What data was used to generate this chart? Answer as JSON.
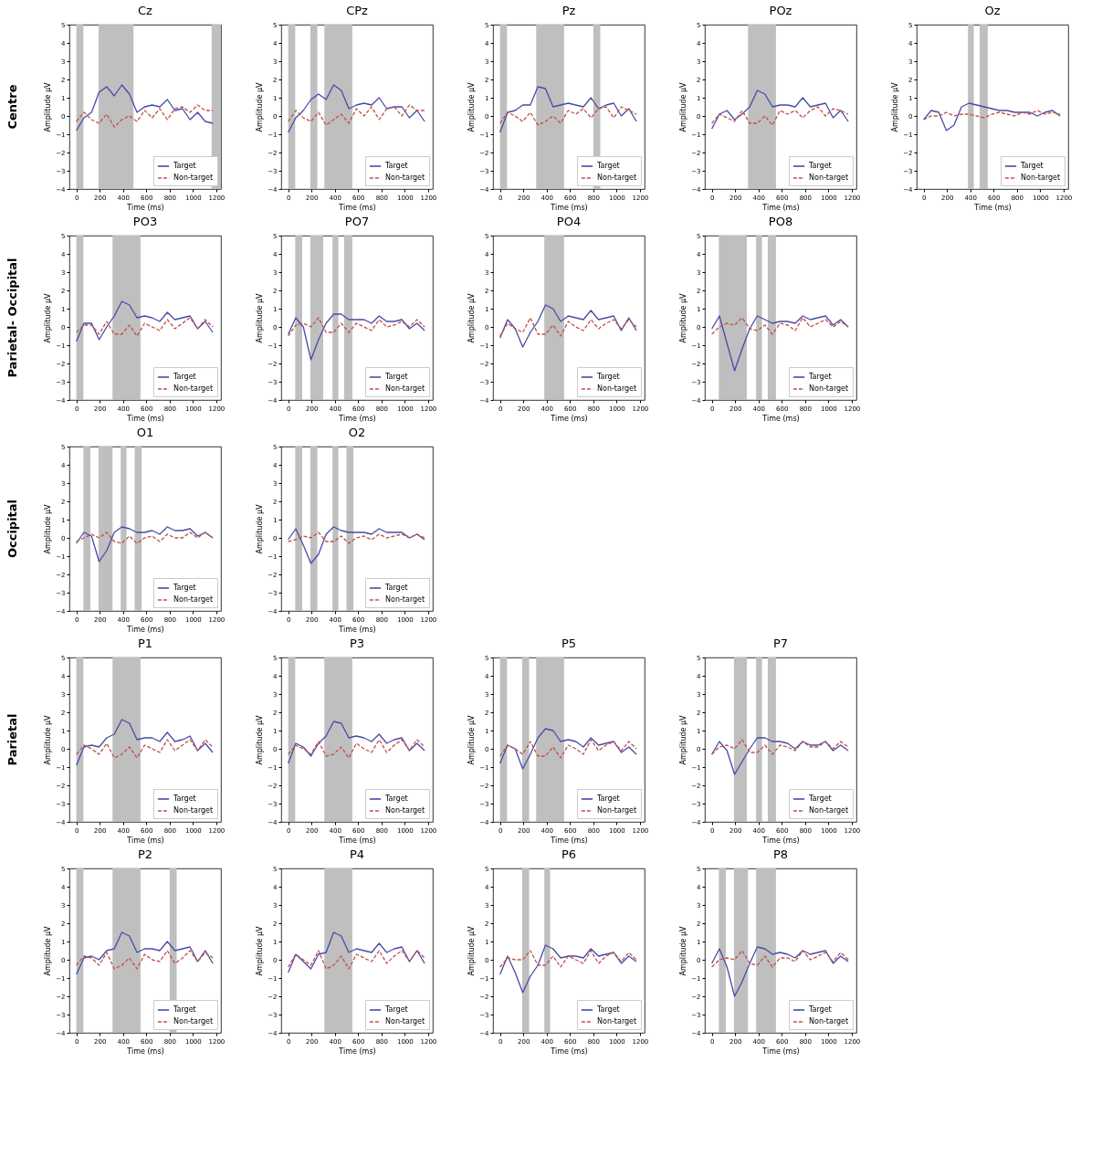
{
  "chart_data": [
    {
      "type": "line",
      "title": "Cz",
      "xlabel": "Time (ms)",
      "ylabel": "Amplitude μV",
      "annotations": [
        "Centre"
      ],
      "xlim": [
        -60,
        1240
      ],
      "xticks": [
        0,
        200,
        400,
        600,
        800,
        1000,
        1200
      ],
      "ylim": [
        -4,
        5
      ],
      "yticks": [
        -4,
        -3,
        -2,
        -1,
        0,
        1,
        2,
        3,
        4,
        5
      ],
      "legend": "bottom right",
      "x": [
        0,
        65,
        130,
        195,
        260,
        325,
        390,
        455,
        520,
        585,
        650,
        715,
        780,
        845,
        910,
        975,
        1040,
        1105,
        1170
      ],
      "bands": [
        {
          "axis": "x",
          "from": 0,
          "to": 60,
          "color": "#bfbfbf"
        },
        {
          "axis": "x",
          "from": 190,
          "to": 490,
          "color": "#bfbfbf"
        },
        {
          "axis": "x",
          "from": 1160,
          "to": 1240,
          "color": "#bfbfbf"
        }
      ],
      "series": [
        {
          "name": "Target",
          "color": "#4a4aa8",
          "line_style": "solid",
          "values": [
            -0.8,
            -0.1,
            0.2,
            1.3,
            1.6,
            1.1,
            1.7,
            1.2,
            0.2,
            0.5,
            0.6,
            0.5,
            0.9,
            0.3,
            0.4,
            -0.2,
            0.2,
            -0.3,
            -0.4
          ]
        },
        {
          "name": "Non-target",
          "color": "#c0504d",
          "line_style": "dashed",
          "values": [
            -0.3,
            0.2,
            -0.2,
            -0.4,
            0.1,
            -0.6,
            -0.2,
            0.0,
            -0.3,
            0.3,
            -0.1,
            0.4,
            -0.2,
            0.4,
            0.5,
            0.2,
            0.6,
            0.3,
            0.3
          ]
        }
      ]
    },
    {
      "type": "line",
      "title": "CPz",
      "xlabel": "Time (ms)",
      "ylabel": "Amplitude μV",
      "xlim": [
        -60,
        1240
      ],
      "xticks": [
        0,
        200,
        400,
        600,
        800,
        1000,
        1200
      ],
      "ylim": [
        -4,
        5
      ],
      "yticks": [
        -4,
        -3,
        -2,
        -1,
        0,
        1,
        2,
        3,
        4,
        5
      ],
      "legend": "bottom right",
      "x": [
        0,
        65,
        130,
        195,
        260,
        325,
        390,
        455,
        520,
        585,
        650,
        715,
        780,
        845,
        910,
        975,
        1040,
        1105,
        1170
      ],
      "bands": [
        {
          "axis": "x",
          "from": 0,
          "to": 60,
          "color": "#bfbfbf"
        },
        {
          "axis": "x",
          "from": 190,
          "to": 250,
          "color": "#bfbfbf"
        },
        {
          "axis": "x",
          "from": 310,
          "to": 550,
          "color": "#bfbfbf"
        }
      ],
      "series": [
        {
          "name": "Target",
          "color": "#4a4aa8",
          "line_style": "solid",
          "values": [
            -0.9,
            -0.1,
            0.3,
            0.9,
            1.2,
            0.9,
            1.7,
            1.4,
            0.4,
            0.6,
            0.7,
            0.6,
            1.0,
            0.4,
            0.5,
            0.5,
            -0.1,
            0.3,
            -0.3
          ]
        },
        {
          "name": "Non-target",
          "color": "#c0504d",
          "line_style": "dashed",
          "values": [
            -0.3,
            0.3,
            -0.1,
            -0.3,
            0.2,
            -0.5,
            -0.2,
            0.1,
            -0.4,
            0.4,
            0.0,
            0.5,
            -0.2,
            0.4,
            0.5,
            0.0,
            0.6,
            0.3,
            0.3
          ]
        }
      ]
    },
    {
      "type": "line",
      "title": "Pz",
      "xlabel": "Time (ms)",
      "ylabel": "Amplitude μV",
      "xlim": [
        -60,
        1240
      ],
      "xticks": [
        0,
        200,
        400,
        600,
        800,
        1000,
        1200
      ],
      "ylim": [
        -4,
        5
      ],
      "yticks": [
        -4,
        -3,
        -2,
        -1,
        0,
        1,
        2,
        3,
        4,
        5
      ],
      "legend": "bottom right",
      "x": [
        0,
        65,
        130,
        195,
        260,
        325,
        390,
        455,
        520,
        585,
        650,
        715,
        780,
        845,
        910,
        975,
        1040,
        1105,
        1170
      ],
      "bands": [
        {
          "axis": "x",
          "from": 0,
          "to": 60,
          "color": "#bfbfbf"
        },
        {
          "axis": "x",
          "from": 310,
          "to": 550,
          "color": "#bfbfbf"
        },
        {
          "axis": "x",
          "from": 800,
          "to": 860,
          "color": "#bfbfbf"
        }
      ],
      "series": [
        {
          "name": "Target",
          "color": "#4a4aa8",
          "line_style": "solid",
          "values": [
            -0.9,
            0.2,
            0.3,
            0.6,
            0.6,
            1.6,
            1.5,
            0.5,
            0.6,
            0.7,
            0.6,
            0.5,
            1.0,
            0.4,
            0.6,
            0.7,
            0.0,
            0.4,
            -0.3
          ]
        },
        {
          "name": "Non-target",
          "color": "#c0504d",
          "line_style": "dashed",
          "values": [
            -0.4,
            0.2,
            0.0,
            -0.3,
            0.2,
            -0.5,
            -0.3,
            0.0,
            -0.4,
            0.3,
            0.1,
            0.4,
            -0.1,
            0.4,
            0.5,
            -0.1,
            0.5,
            0.3,
            0.1
          ]
        }
      ]
    },
    {
      "type": "line",
      "title": "POz",
      "xlabel": "Time (ms)",
      "ylabel": "Amplitude μV",
      "xlim": [
        -60,
        1240
      ],
      "xticks": [
        0,
        200,
        400,
        600,
        800,
        1000,
        1200
      ],
      "ylim": [
        -4,
        5
      ],
      "yticks": [
        -4,
        -3,
        -2,
        -1,
        0,
        1,
        2,
        3,
        4,
        5
      ],
      "legend": "bottom right",
      "x": [
        0,
        65,
        130,
        195,
        260,
        325,
        390,
        455,
        520,
        585,
        650,
        715,
        780,
        845,
        910,
        975,
        1040,
        1105,
        1170
      ],
      "bands": [
        {
          "axis": "x",
          "from": 310,
          "to": 550,
          "color": "#bfbfbf"
        }
      ],
      "series": [
        {
          "name": "Target",
          "color": "#4a4aa8",
          "line_style": "solid",
          "values": [
            -0.7,
            0.1,
            0.3,
            -0.2,
            0.1,
            0.5,
            1.4,
            1.2,
            0.5,
            0.6,
            0.6,
            0.5,
            1.0,
            0.5,
            0.6,
            0.7,
            -0.1,
            0.3,
            -0.3
          ]
        },
        {
          "name": "Non-target",
          "color": "#c0504d",
          "line_style": "dashed",
          "values": [
            -0.4,
            0.1,
            -0.1,
            -0.3,
            0.3,
            -0.4,
            -0.4,
            0.0,
            -0.5,
            0.3,
            0.1,
            0.3,
            -0.1,
            0.3,
            0.5,
            0.0,
            0.4,
            0.3,
            0.1
          ]
        }
      ]
    },
    {
      "type": "line",
      "title": "Oz",
      "xlabel": "Time (ms)",
      "ylabel": "Amplitude μV",
      "xlim": [
        -60,
        1240
      ],
      "xticks": [
        0,
        200,
        400,
        600,
        800,
        1000,
        1200
      ],
      "ylim": [
        -4,
        5
      ],
      "yticks": [
        -4,
        -3,
        -2,
        -1,
        0,
        1,
        2,
        3,
        4,
        5
      ],
      "legend": "bottom right",
      "x": [
        0,
        65,
        130,
        195,
        260,
        325,
        390,
        455,
        520,
        585,
        650,
        715,
        780,
        845,
        910,
        975,
        1040,
        1105,
        1170
      ],
      "bands": [
        {
          "axis": "x",
          "from": 380,
          "to": 430,
          "color": "#bfbfbf"
        },
        {
          "axis": "x",
          "from": 480,
          "to": 550,
          "color": "#bfbfbf"
        }
      ],
      "series": [
        {
          "name": "Target",
          "color": "#4a4aa8",
          "line_style": "solid",
          "values": [
            -0.2,
            0.3,
            0.2,
            -0.8,
            -0.5,
            0.5,
            0.7,
            0.6,
            0.5,
            0.4,
            0.3,
            0.3,
            0.2,
            0.2,
            0.2,
            0.0,
            0.2,
            0.3,
            0.0
          ]
        },
        {
          "name": "Non-target",
          "color": "#c0504d",
          "line_style": "dashed",
          "values": [
            -0.2,
            0.0,
            0.0,
            0.2,
            0.0,
            0.1,
            0.1,
            0.0,
            -0.1,
            0.1,
            0.2,
            0.1,
            0.0,
            0.2,
            0.1,
            0.3,
            0.1,
            0.2,
            0.1
          ]
        }
      ]
    },
    {
      "type": "line",
      "title": "PO3",
      "xlabel": "Time (ms)",
      "ylabel": "Amplitude μV",
      "annotations": [
        "Parietal- Occipital"
      ],
      "xlim": [
        -60,
        1240
      ],
      "xticks": [
        0,
        200,
        400,
        600,
        800,
        1000,
        1200
      ],
      "ylim": [
        -4,
        5
      ],
      "yticks": [
        -4,
        -3,
        -2,
        -1,
        0,
        1,
        2,
        3,
        4,
        5
      ],
      "legend": "bottom right",
      "x": [
        0,
        65,
        130,
        195,
        260,
        325,
        390,
        455,
        520,
        585,
        650,
        715,
        780,
        845,
        910,
        975,
        1040,
        1105,
        1170
      ],
      "bands": [
        {
          "axis": "x",
          "from": 0,
          "to": 60,
          "color": "#bfbfbf"
        },
        {
          "axis": "x",
          "from": 310,
          "to": 550,
          "color": "#bfbfbf"
        }
      ],
      "series": [
        {
          "name": "Target",
          "color": "#4a4aa8",
          "line_style": "solid",
          "values": [
            -0.8,
            0.2,
            0.2,
            -0.7,
            0.0,
            0.6,
            1.4,
            1.2,
            0.5,
            0.6,
            0.5,
            0.3,
            0.8,
            0.4,
            0.5,
            0.6,
            -0.1,
            0.3,
            -0.3
          ]
        },
        {
          "name": "Non-target",
          "color": "#c0504d",
          "line_style": "dashed",
          "values": [
            -0.3,
            0.1,
            0.1,
            -0.4,
            0.3,
            -0.4,
            -0.4,
            0.1,
            -0.5,
            0.2,
            0.0,
            -0.2,
            0.4,
            -0.1,
            0.2,
            0.5,
            -0.1,
            0.4,
            0.0
          ]
        }
      ]
    },
    {
      "type": "line",
      "title": "PO7",
      "xlabel": "Time (ms)",
      "ylabel": "Amplitude μV",
      "xlim": [
        -60,
        1240
      ],
      "xticks": [
        0,
        200,
        400,
        600,
        800,
        1000,
        1200
      ],
      "ylim": [
        -4,
        5
      ],
      "yticks": [
        -4,
        -3,
        -2,
        -1,
        0,
        1,
        2,
        3,
        4,
        5
      ],
      "legend": "bottom right",
      "x": [
        0,
        65,
        130,
        195,
        260,
        325,
        390,
        455,
        520,
        585,
        650,
        715,
        780,
        845,
        910,
        975,
        1040,
        1105,
        1170
      ],
      "bands": [
        {
          "axis": "x",
          "from": 60,
          "to": 120,
          "color": "#bfbfbf"
        },
        {
          "axis": "x",
          "from": 190,
          "to": 300,
          "color": "#bfbfbf"
        },
        {
          "axis": "x",
          "from": 380,
          "to": 430,
          "color": "#bfbfbf"
        },
        {
          "axis": "x",
          "from": 480,
          "to": 550,
          "color": "#bfbfbf"
        }
      ],
      "series": [
        {
          "name": "Target",
          "color": "#4a4aa8",
          "line_style": "solid",
          "values": [
            -0.4,
            0.5,
            0.0,
            -1.8,
            -0.7,
            0.2,
            0.7,
            0.7,
            0.4,
            0.4,
            0.4,
            0.2,
            0.6,
            0.3,
            0.3,
            0.4,
            -0.1,
            0.2,
            -0.2
          ]
        },
        {
          "name": "Non-target",
          "color": "#c0504d",
          "line_style": "dashed",
          "values": [
            -0.5,
            0.1,
            0.2,
            0.0,
            0.5,
            -0.3,
            -0.3,
            0.2,
            -0.3,
            0.2,
            0.0,
            -0.2,
            0.4,
            0.0,
            0.1,
            0.3,
            0.0,
            0.4,
            0.0
          ]
        }
      ]
    },
    {
      "type": "line",
      "title": "PO4",
      "xlabel": "Time (ms)",
      "ylabel": "Amplitude μV",
      "xlim": [
        -60,
        1240
      ],
      "xticks": [
        0,
        200,
        400,
        600,
        800,
        1000,
        1200
      ],
      "ylim": [
        -4,
        5
      ],
      "yticks": [
        -4,
        -3,
        -2,
        -1,
        0,
        1,
        2,
        3,
        4,
        5
      ],
      "legend": "bottom right",
      "x": [
        0,
        65,
        130,
        195,
        260,
        325,
        390,
        455,
        520,
        585,
        650,
        715,
        780,
        845,
        910,
        975,
        1040,
        1105,
        1170
      ],
      "bands": [
        {
          "axis": "x",
          "from": 380,
          "to": 550,
          "color": "#bfbfbf"
        }
      ],
      "series": [
        {
          "name": "Target",
          "color": "#4a4aa8",
          "line_style": "solid",
          "values": [
            -0.6,
            0.4,
            -0.1,
            -1.1,
            -0.3,
            0.3,
            1.2,
            1.0,
            0.3,
            0.6,
            0.5,
            0.4,
            0.9,
            0.4,
            0.5,
            0.6,
            -0.2,
            0.5,
            -0.2
          ]
        },
        {
          "name": "Non-target",
          "color": "#c0504d",
          "line_style": "dashed",
          "values": [
            -0.5,
            0.2,
            -0.1,
            -0.3,
            0.5,
            -0.4,
            -0.4,
            0.1,
            -0.5,
            0.3,
            0.0,
            -0.2,
            0.4,
            -0.1,
            0.2,
            0.4,
            -0.1,
            0.4,
            0.0
          ]
        }
      ]
    },
    {
      "type": "line",
      "title": "PO8",
      "xlabel": "Time (ms)",
      "ylabel": "Amplitude μV",
      "xlim": [
        -60,
        1240
      ],
      "xticks": [
        0,
        200,
        400,
        600,
        800,
        1000,
        1200
      ],
      "ylim": [
        -4,
        5
      ],
      "yticks": [
        -4,
        -3,
        -2,
        -1,
        0,
        1,
        2,
        3,
        4,
        5
      ],
      "legend": "bottom right",
      "x": [
        0,
        65,
        130,
        195,
        260,
        325,
        390,
        455,
        520,
        585,
        650,
        715,
        780,
        845,
        910,
        975,
        1040,
        1105,
        1170
      ],
      "bands": [
        {
          "axis": "x",
          "from": 60,
          "to": 300,
          "color": "#bfbfbf"
        },
        {
          "axis": "x",
          "from": 380,
          "to": 430,
          "color": "#bfbfbf"
        },
        {
          "axis": "x",
          "from": 480,
          "to": 550,
          "color": "#bfbfbf"
        }
      ],
      "series": [
        {
          "name": "Target",
          "color": "#4a4aa8",
          "line_style": "solid",
          "values": [
            -0.1,
            0.6,
            -0.9,
            -2.4,
            -1.2,
            -0.1,
            0.6,
            0.4,
            0.2,
            0.3,
            0.3,
            0.2,
            0.6,
            0.4,
            0.5,
            0.6,
            0.1,
            0.4,
            0.0
          ]
        },
        {
          "name": "Non-target",
          "color": "#c0504d",
          "line_style": "dashed",
          "values": [
            -0.4,
            0.0,
            0.2,
            0.1,
            0.5,
            -0.1,
            -0.2,
            0.1,
            -0.4,
            0.2,
            0.1,
            -0.2,
            0.5,
            0.0,
            0.2,
            0.4,
            0.0,
            0.3,
            0.0
          ]
        }
      ]
    },
    {
      "type": "line",
      "title": "O1",
      "xlabel": "Time (ms)",
      "ylabel": "Amplitude μV",
      "annotations": [
        "Occipital"
      ],
      "xlim": [
        -60,
        1240
      ],
      "xticks": [
        0,
        200,
        400,
        600,
        800,
        1000,
        1200
      ],
      "ylim": [
        -4,
        5
      ],
      "yticks": [
        -4,
        -3,
        -2,
        -1,
        0,
        1,
        2,
        3,
        4,
        5
      ],
      "legend": "bottom right",
      "x": [
        0,
        65,
        130,
        195,
        260,
        325,
        390,
        455,
        520,
        585,
        650,
        715,
        780,
        845,
        910,
        975,
        1040,
        1105,
        1170
      ],
      "bands": [
        {
          "axis": "x",
          "from": 60,
          "to": 120,
          "color": "#bfbfbf"
        },
        {
          "axis": "x",
          "from": 190,
          "to": 310,
          "color": "#bfbfbf"
        },
        {
          "axis": "x",
          "from": 380,
          "to": 430,
          "color": "#bfbfbf"
        },
        {
          "axis": "x",
          "from": 500,
          "to": 560,
          "color": "#bfbfbf"
        }
      ],
      "series": [
        {
          "name": "Target",
          "color": "#4a4aa8",
          "line_style": "solid",
          "values": [
            -0.3,
            0.3,
            0.1,
            -1.3,
            -0.7,
            0.3,
            0.6,
            0.5,
            0.3,
            0.3,
            0.4,
            0.2,
            0.6,
            0.4,
            0.4,
            0.5,
            0.1,
            0.3,
            0.0
          ]
        },
        {
          "name": "Non-target",
          "color": "#c0504d",
          "line_style": "dashed",
          "values": [
            -0.2,
            0.0,
            0.2,
            0.0,
            0.3,
            -0.2,
            -0.3,
            0.1,
            -0.3,
            0.0,
            0.1,
            -0.2,
            0.2,
            0.0,
            0.0,
            0.3,
            0.0,
            0.3,
            0.0
          ]
        }
      ]
    },
    {
      "type": "line",
      "title": "O2",
      "xlabel": "Time (ms)",
      "ylabel": "Amplitude μV",
      "xlim": [
        -60,
        1240
      ],
      "xticks": [
        0,
        200,
        400,
        600,
        800,
        1000,
        1200
      ],
      "ylim": [
        -4,
        5
      ],
      "yticks": [
        -4,
        -3,
        -2,
        -1,
        0,
        1,
        2,
        3,
        4,
        5
      ],
      "legend": "bottom right",
      "x": [
        0,
        65,
        130,
        195,
        260,
        325,
        390,
        455,
        520,
        585,
        650,
        715,
        780,
        845,
        910,
        975,
        1040,
        1105,
        1170
      ],
      "bands": [
        {
          "axis": "x",
          "from": 60,
          "to": 120,
          "color": "#bfbfbf"
        },
        {
          "axis": "x",
          "from": 190,
          "to": 250,
          "color": "#bfbfbf"
        },
        {
          "axis": "x",
          "from": 380,
          "to": 430,
          "color": "#bfbfbf"
        },
        {
          "axis": "x",
          "from": 500,
          "to": 560,
          "color": "#bfbfbf"
        }
      ],
      "series": [
        {
          "name": "Target",
          "color": "#4a4aa8",
          "line_style": "solid",
          "values": [
            -0.1,
            0.5,
            -0.4,
            -1.4,
            -0.9,
            0.2,
            0.6,
            0.4,
            0.3,
            0.3,
            0.3,
            0.2,
            0.5,
            0.3,
            0.3,
            0.3,
            0.0,
            0.2,
            -0.1
          ]
        },
        {
          "name": "Non-target",
          "color": "#c0504d",
          "line_style": "dashed",
          "values": [
            -0.2,
            -0.1,
            0.1,
            0.0,
            0.3,
            -0.2,
            -0.2,
            0.1,
            -0.3,
            0.0,
            0.1,
            -0.1,
            0.2,
            0.0,
            0.1,
            0.2,
            0.0,
            0.2,
            0.0
          ]
        }
      ]
    },
    {
      "type": "line",
      "title": "P1",
      "xlabel": "Time (ms)",
      "ylabel": "Amplitude μV",
      "annotations": [
        "Parietal"
      ],
      "xlim": [
        -60,
        1240
      ],
      "xticks": [
        0,
        200,
        400,
        600,
        800,
        1000,
        1200
      ],
      "ylim": [
        -4,
        5
      ],
      "yticks": [
        -4,
        -3,
        -2,
        -1,
        0,
        1,
        2,
        3,
        4,
        5
      ],
      "legend": "bottom right",
      "x": [
        0,
        65,
        130,
        195,
        260,
        325,
        390,
        455,
        520,
        585,
        650,
        715,
        780,
        845,
        910,
        975,
        1040,
        1105,
        1170
      ],
      "bands": [
        {
          "axis": "x",
          "from": 0,
          "to": 60,
          "color": "#bfbfbf"
        },
        {
          "axis": "x",
          "from": 310,
          "to": 550,
          "color": "#bfbfbf"
        }
      ],
      "series": [
        {
          "name": "Target",
          "color": "#4a4aa8",
          "line_style": "solid",
          "values": [
            -0.9,
            0.1,
            0.2,
            0.1,
            0.6,
            0.8,
            1.6,
            1.4,
            0.5,
            0.6,
            0.6,
            0.4,
            0.9,
            0.4,
            0.5,
            0.7,
            -0.1,
            0.3,
            -0.2
          ]
        },
        {
          "name": "Non-target",
          "color": "#c0504d",
          "line_style": "dashed",
          "values": [
            -0.3,
            0.2,
            0.0,
            -0.3,
            0.3,
            -0.5,
            -0.3,
            0.1,
            -0.5,
            0.2,
            0.0,
            -0.2,
            0.5,
            -0.1,
            0.2,
            0.5,
            -0.1,
            0.5,
            0.1
          ]
        }
      ]
    },
    {
      "type": "line",
      "title": "P3",
      "xlabel": "Time (ms)",
      "ylabel": "Amplitude μV",
      "xlim": [
        -60,
        1240
      ],
      "xticks": [
        0,
        200,
        400,
        600,
        800,
        1000,
        1200
      ],
      "ylim": [
        -4,
        5
      ],
      "yticks": [
        -4,
        -3,
        -2,
        -1,
        0,
        1,
        2,
        3,
        4,
        5
      ],
      "legend": "bottom right",
      "x": [
        0,
        65,
        130,
        195,
        260,
        325,
        390,
        455,
        520,
        585,
        650,
        715,
        780,
        845,
        910,
        975,
        1040,
        1105,
        1170
      ],
      "bands": [
        {
          "axis": "x",
          "from": 0,
          "to": 60,
          "color": "#bfbfbf"
        },
        {
          "axis": "x",
          "from": 310,
          "to": 550,
          "color": "#bfbfbf"
        }
      ],
      "series": [
        {
          "name": "Target",
          "color": "#4a4aa8",
          "line_style": "solid",
          "values": [
            -0.8,
            0.3,
            0.1,
            -0.4,
            0.3,
            0.7,
            1.5,
            1.4,
            0.6,
            0.7,
            0.6,
            0.4,
            0.8,
            0.3,
            0.5,
            0.6,
            -0.1,
            0.3,
            -0.1
          ]
        },
        {
          "name": "Non-target",
          "color": "#c0504d",
          "line_style": "dashed",
          "values": [
            -0.3,
            0.2,
            0.0,
            -0.3,
            0.4,
            -0.4,
            -0.3,
            0.1,
            -0.5,
            0.3,
            0.0,
            -0.2,
            0.5,
            -0.2,
            0.2,
            0.5,
            -0.1,
            0.5,
            0.1
          ]
        }
      ]
    },
    {
      "type": "line",
      "title": "P5",
      "xlabel": "Time (ms)",
      "ylabel": "Amplitude μV",
      "xlim": [
        -60,
        1240
      ],
      "xticks": [
        0,
        200,
        400,
        600,
        800,
        1000,
        1200
      ],
      "ylim": [
        -4,
        5
      ],
      "yticks": [
        -4,
        -3,
        -2,
        -1,
        0,
        1,
        2,
        3,
        4,
        5
      ],
      "legend": "bottom right",
      "x": [
        0,
        65,
        130,
        195,
        260,
        325,
        390,
        455,
        520,
        585,
        650,
        715,
        780,
        845,
        910,
        975,
        1040,
        1105,
        1170
      ],
      "bands": [
        {
          "axis": "x",
          "from": 0,
          "to": 60,
          "color": "#bfbfbf"
        },
        {
          "axis": "x",
          "from": 190,
          "to": 250,
          "color": "#bfbfbf"
        },
        {
          "axis": "x",
          "from": 310,
          "to": 550,
          "color": "#bfbfbf"
        }
      ],
      "series": [
        {
          "name": "Target",
          "color": "#4a4aa8",
          "line_style": "solid",
          "values": [
            -0.8,
            0.2,
            0.0,
            -1.1,
            -0.3,
            0.6,
            1.1,
            1.0,
            0.4,
            0.5,
            0.4,
            0.1,
            0.6,
            0.2,
            0.3,
            0.4,
            -0.2,
            0.1,
            -0.3
          ]
        },
        {
          "name": "Non-target",
          "color": "#c0504d",
          "line_style": "dashed",
          "values": [
            -0.4,
            0.2,
            0.0,
            -0.3,
            0.4,
            -0.4,
            -0.4,
            0.1,
            -0.5,
            0.2,
            0.0,
            -0.3,
            0.5,
            -0.1,
            0.2,
            0.4,
            -0.1,
            0.4,
            0.0
          ]
        }
      ]
    },
    {
      "type": "line",
      "title": "P7",
      "xlabel": "Time (ms)",
      "ylabel": "Amplitude μV",
      "xlim": [
        -60,
        1240
      ],
      "xticks": [
        0,
        200,
        400,
        600,
        800,
        1000,
        1200
      ],
      "ylim": [
        -4,
        5
      ],
      "yticks": [
        -4,
        -3,
        -2,
        -1,
        0,
        1,
        2,
        3,
        4,
        5
      ],
      "legend": "bottom right",
      "x": [
        0,
        65,
        130,
        195,
        260,
        325,
        390,
        455,
        520,
        585,
        650,
        715,
        780,
        845,
        910,
        975,
        1040,
        1105,
        1170
      ],
      "bands": [
        {
          "axis": "x",
          "from": 190,
          "to": 300,
          "color": "#bfbfbf"
        },
        {
          "axis": "x",
          "from": 380,
          "to": 430,
          "color": "#bfbfbf"
        },
        {
          "axis": "x",
          "from": 480,
          "to": 550,
          "color": "#bfbfbf"
        }
      ],
      "series": [
        {
          "name": "Target",
          "color": "#4a4aa8",
          "line_style": "solid",
          "values": [
            -0.3,
            0.4,
            -0.1,
            -1.4,
            -0.7,
            0.0,
            0.6,
            0.6,
            0.4,
            0.4,
            0.3,
            0.0,
            0.4,
            0.2,
            0.2,
            0.4,
            -0.1,
            0.2,
            -0.1
          ]
        },
        {
          "name": "Non-target",
          "color": "#c0504d",
          "line_style": "dashed",
          "values": [
            -0.3,
            0.1,
            0.2,
            0.0,
            0.5,
            -0.2,
            -0.2,
            0.2,
            -0.3,
            0.2,
            0.1,
            -0.1,
            0.4,
            0.1,
            0.1,
            0.4,
            0.0,
            0.4,
            0.1
          ]
        }
      ]
    },
    {
      "type": "line",
      "title": "P2",
      "xlabel": "Time (ms)",
      "ylabel": "Amplitude μV",
      "xlim": [
        -60,
        1240
      ],
      "xticks": [
        0,
        200,
        400,
        600,
        800,
        1000,
        1200
      ],
      "ylim": [
        -4,
        5
      ],
      "yticks": [
        -4,
        -3,
        -2,
        -1,
        0,
        1,
        2,
        3,
        4,
        5
      ],
      "legend": "bottom right",
      "x": [
        0,
        65,
        130,
        195,
        260,
        325,
        390,
        455,
        520,
        585,
        650,
        715,
        780,
        845,
        910,
        975,
        1040,
        1105,
        1170
      ],
      "bands": [
        {
          "axis": "x",
          "from": 0,
          "to": 60,
          "color": "#bfbfbf"
        },
        {
          "axis": "x",
          "from": 310,
          "to": 550,
          "color": "#bfbfbf"
        },
        {
          "axis": "x",
          "from": 800,
          "to": 860,
          "color": "#bfbfbf"
        }
      ],
      "series": [
        {
          "name": "Target",
          "color": "#4a4aa8",
          "line_style": "solid",
          "values": [
            -0.8,
            0.1,
            0.2,
            0.0,
            0.5,
            0.6,
            1.5,
            1.3,
            0.4,
            0.6,
            0.6,
            0.5,
            1.0,
            0.5,
            0.6,
            0.7,
            -0.1,
            0.5,
            -0.2
          ]
        },
        {
          "name": "Non-target",
          "color": "#c0504d",
          "line_style": "dashed",
          "values": [
            -0.3,
            0.2,
            0.1,
            -0.3,
            0.4,
            -0.5,
            -0.3,
            0.1,
            -0.5,
            0.3,
            0.0,
            -0.1,
            0.5,
            -0.2,
            0.1,
            0.5,
            -0.1,
            0.4,
            0.1
          ]
        }
      ]
    },
    {
      "type": "line",
      "title": "P4",
      "xlabel": "Time (ms)",
      "ylabel": "Amplitude μV",
      "xlim": [
        -60,
        1240
      ],
      "xticks": [
        0,
        200,
        400,
        600,
        800,
        1000,
        1200
      ],
      "ylim": [
        -4,
        5
      ],
      "yticks": [
        -4,
        -3,
        -2,
        -1,
        0,
        1,
        2,
        3,
        4,
        5
      ],
      "legend": "bottom right",
      "x": [
        0,
        65,
        130,
        195,
        260,
        325,
        390,
        455,
        520,
        585,
        650,
        715,
        780,
        845,
        910,
        975,
        1040,
        1105,
        1170
      ],
      "bands": [
        {
          "axis": "x",
          "from": 310,
          "to": 550,
          "color": "#bfbfbf"
        }
      ],
      "series": [
        {
          "name": "Target",
          "color": "#4a4aa8",
          "line_style": "solid",
          "values": [
            -0.7,
            0.3,
            -0.1,
            -0.5,
            0.3,
            0.4,
            1.5,
            1.3,
            0.4,
            0.6,
            0.5,
            0.4,
            0.9,
            0.4,
            0.6,
            0.7,
            -0.1,
            0.5,
            -0.2
          ]
        },
        {
          "name": "Non-target",
          "color": "#c0504d",
          "line_style": "dashed",
          "values": [
            -0.4,
            0.3,
            0.0,
            -0.3,
            0.5,
            -0.5,
            -0.3,
            0.2,
            -0.5,
            0.3,
            0.1,
            -0.1,
            0.5,
            -0.2,
            0.2,
            0.5,
            -0.1,
            0.5,
            0.1
          ]
        }
      ]
    },
    {
      "type": "line",
      "title": "P6",
      "xlabel": "Time (ms)",
      "ylabel": "Amplitude μV",
      "xlim": [
        -60,
        1240
      ],
      "xticks": [
        0,
        200,
        400,
        600,
        800,
        1000,
        1200
      ],
      "ylim": [
        -4,
        5
      ],
      "yticks": [
        -4,
        -3,
        -2,
        -1,
        0,
        1,
        2,
        3,
        4,
        5
      ],
      "legend": "bottom right",
      "x": [
        0,
        65,
        130,
        195,
        260,
        325,
        390,
        455,
        520,
        585,
        650,
        715,
        780,
        845,
        910,
        975,
        1040,
        1105,
        1170
      ],
      "bands": [
        {
          "axis": "x",
          "from": 190,
          "to": 250,
          "color": "#bfbfbf"
        },
        {
          "axis": "x",
          "from": 380,
          "to": 430,
          "color": "#bfbfbf"
        }
      ],
      "series": [
        {
          "name": "Target",
          "color": "#4a4aa8",
          "line_style": "solid",
          "values": [
            -0.8,
            0.2,
            -0.7,
            -1.8,
            -0.9,
            -0.3,
            0.8,
            0.6,
            0.1,
            0.2,
            0.2,
            0.1,
            0.6,
            0.2,
            0.3,
            0.4,
            -0.2,
            0.2,
            -0.1
          ]
        },
        {
          "name": "Non-target",
          "color": "#c0504d",
          "line_style": "dashed",
          "values": [
            -0.4,
            0.1,
            0.0,
            0.0,
            0.5,
            -0.3,
            -0.3,
            0.2,
            -0.4,
            0.2,
            0.0,
            -0.2,
            0.5,
            -0.2,
            0.2,
            0.4,
            -0.1,
            0.4,
            0.0
          ]
        }
      ]
    },
    {
      "type": "line",
      "title": "P8",
      "xlabel": "Time (ms)",
      "ylabel": "Amplitude μV",
      "xlim": [
        -60,
        1240
      ],
      "xticks": [
        0,
        200,
        400,
        600,
        800,
        1000,
        1200
      ],
      "ylim": [
        -4,
        5
      ],
      "yticks": [
        -4,
        -3,
        -2,
        -1,
        0,
        1,
        2,
        3,
        4,
        5
      ],
      "legend": "bottom right",
      "x": [
        0,
        65,
        130,
        195,
        260,
        325,
        390,
        455,
        520,
        585,
        650,
        715,
        780,
        845,
        910,
        975,
        1040,
        1105,
        1170
      ],
      "bands": [
        {
          "axis": "x",
          "from": 60,
          "to": 120,
          "color": "#bfbfbf"
        },
        {
          "axis": "x",
          "from": 190,
          "to": 310,
          "color": "#bfbfbf"
        },
        {
          "axis": "x",
          "from": 380,
          "to": 550,
          "color": "#bfbfbf"
        }
      ],
      "series": [
        {
          "name": "Target",
          "color": "#4a4aa8",
          "line_style": "solid",
          "values": [
            -0.2,
            0.6,
            -0.4,
            -2.0,
            -1.2,
            -0.2,
            0.7,
            0.6,
            0.3,
            0.4,
            0.3,
            0.1,
            0.5,
            0.3,
            0.4,
            0.5,
            -0.2,
            0.2,
            -0.1
          ]
        },
        {
          "name": "Non-target",
          "color": "#c0504d",
          "line_style": "dashed",
          "values": [
            -0.4,
            0.0,
            0.1,
            0.0,
            0.5,
            -0.2,
            -0.3,
            0.2,
            -0.4,
            0.1,
            0.1,
            -0.1,
            0.5,
            0.0,
            0.2,
            0.4,
            -0.1,
            0.4,
            0.0
          ]
        }
      ]
    }
  ]
}
